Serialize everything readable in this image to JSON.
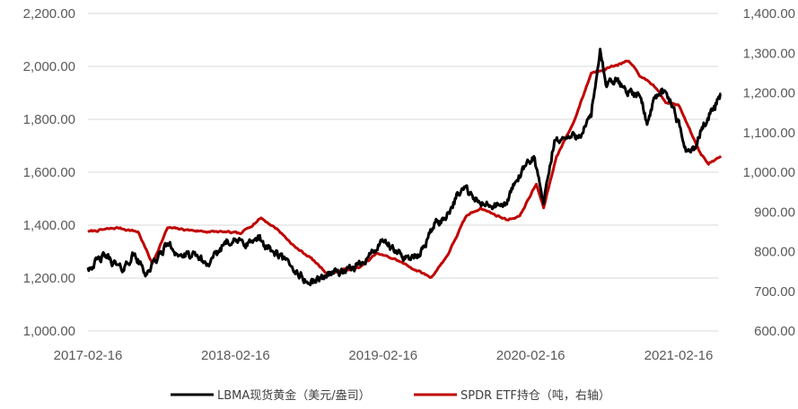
{
  "chart_data": {
    "type": "line",
    "title": "",
    "xlabel": "",
    "ylabel": "",
    "x_ticks": [
      "2017-02-16",
      "2018-02-16",
      "2019-02-16",
      "2020-02-16",
      "2021-02-16"
    ],
    "x_range": [
      "2017-02-16",
      "2021-07-01"
    ],
    "y_left": {
      "range": [
        1000,
        2200
      ],
      "ticks": [
        "1,000.00",
        "1,200.00",
        "1,400.00",
        "1,600.00",
        "1,800.00",
        "2,000.00",
        "2,200.00"
      ]
    },
    "y_right": {
      "range": [
        600,
        1400
      ],
      "ticks": [
        "600.00",
        "700.00",
        "800.00",
        "900.00",
        "1,000.00",
        "1,100.00",
        "1,200.00",
        "1,300.00",
        "1,400.00"
      ]
    },
    "grid": true,
    "legend_position": "bottom",
    "series": [
      {
        "name": "LBMA现货黄金（美元/盎司）",
        "axis": "left",
        "color": "#000000",
        "x": [
          "2017-02-16",
          "2017-04-01",
          "2017-05-10",
          "2017-06-10",
          "2017-07-10",
          "2017-09-01",
          "2017-10-01",
          "2017-11-15",
          "2017-12-12",
          "2018-01-25",
          "2018-03-15",
          "2018-04-15",
          "2018-05-20",
          "2018-06-30",
          "2018-08-16",
          "2018-09-15",
          "2018-10-15",
          "2018-11-15",
          "2018-12-15",
          "2019-01-15",
          "2019-02-20",
          "2019-03-15",
          "2019-04-23",
          "2019-05-15",
          "2019-06-25",
          "2019-07-15",
          "2019-08-15",
          "2019-09-05",
          "2019-10-01",
          "2019-11-15",
          "2019-12-15",
          "2020-01-08",
          "2020-02-24",
          "2020-03-19",
          "2020-04-15",
          "2020-05-15",
          "2020-06-15",
          "2020-07-15",
          "2020-08-06",
          "2020-08-20",
          "2020-09-15",
          "2020-10-15",
          "2020-11-15",
          "2020-11-30",
          "2020-12-15",
          "2021-01-06",
          "2021-02-01",
          "2021-03-08",
          "2021-03-30",
          "2021-04-15",
          "2021-05-15",
          "2021-06-01"
        ],
        "y": [
          1240,
          1285,
          1230,
          1290,
          1215,
          1330,
          1285,
          1280,
          1245,
          1345,
          1330,
          1345,
          1300,
          1250,
          1180,
          1200,
          1225,
          1220,
          1250,
          1290,
          1340,
          1300,
          1275,
          1280,
          1410,
          1420,
          1500,
          1545,
          1490,
          1470,
          1475,
          1560,
          1660,
          1480,
          1720,
          1730,
          1740,
          1810,
          2065,
          1930,
          1945,
          1905,
          1880,
          1780,
          1870,
          1915,
          1850,
          1680,
          1690,
          1770,
          1850,
          1895
        ]
      },
      {
        "name": "SPDR ETF持仓（吨，右轴）",
        "axis": "right",
        "color": "#c00000",
        "x": [
          "2017-02-16",
          "2017-05-01",
          "2017-06-20",
          "2017-07-25",
          "2017-09-01",
          "2017-10-15",
          "2017-12-10",
          "2018-01-15",
          "2018-03-01",
          "2018-04-20",
          "2018-06-01",
          "2018-07-15",
          "2018-08-20",
          "2018-10-01",
          "2018-11-15",
          "2018-12-20",
          "2019-02-01",
          "2019-03-20",
          "2019-04-25",
          "2019-06-15",
          "2019-07-25",
          "2019-09-10",
          "2019-10-15",
          "2019-11-15",
          "2019-12-20",
          "2020-01-20",
          "2020-03-01",
          "2020-03-19",
          "2020-04-20",
          "2020-06-01",
          "2020-07-15",
          "2020-08-15",
          "2020-09-15",
          "2020-10-15",
          "2020-11-15",
          "2020-12-15",
          "2021-01-15",
          "2021-02-15",
          "2021-03-15",
          "2021-04-10",
          "2021-05-01",
          "2021-06-01"
        ],
        "y": [
          850,
          860,
          850,
          770,
          860,
          855,
          850,
          850,
          845,
          885,
          855,
          810,
          785,
          745,
          755,
          760,
          795,
          780,
          760,
          735,
          790,
          890,
          910,
          895,
          880,
          890,
          970,
          910,
          1040,
          1125,
          1250,
          1260,
          1270,
          1280,
          1240,
          1220,
          1175,
          1170,
          1110,
          1050,
          1020,
          1040
        ]
      }
    ]
  }
}
